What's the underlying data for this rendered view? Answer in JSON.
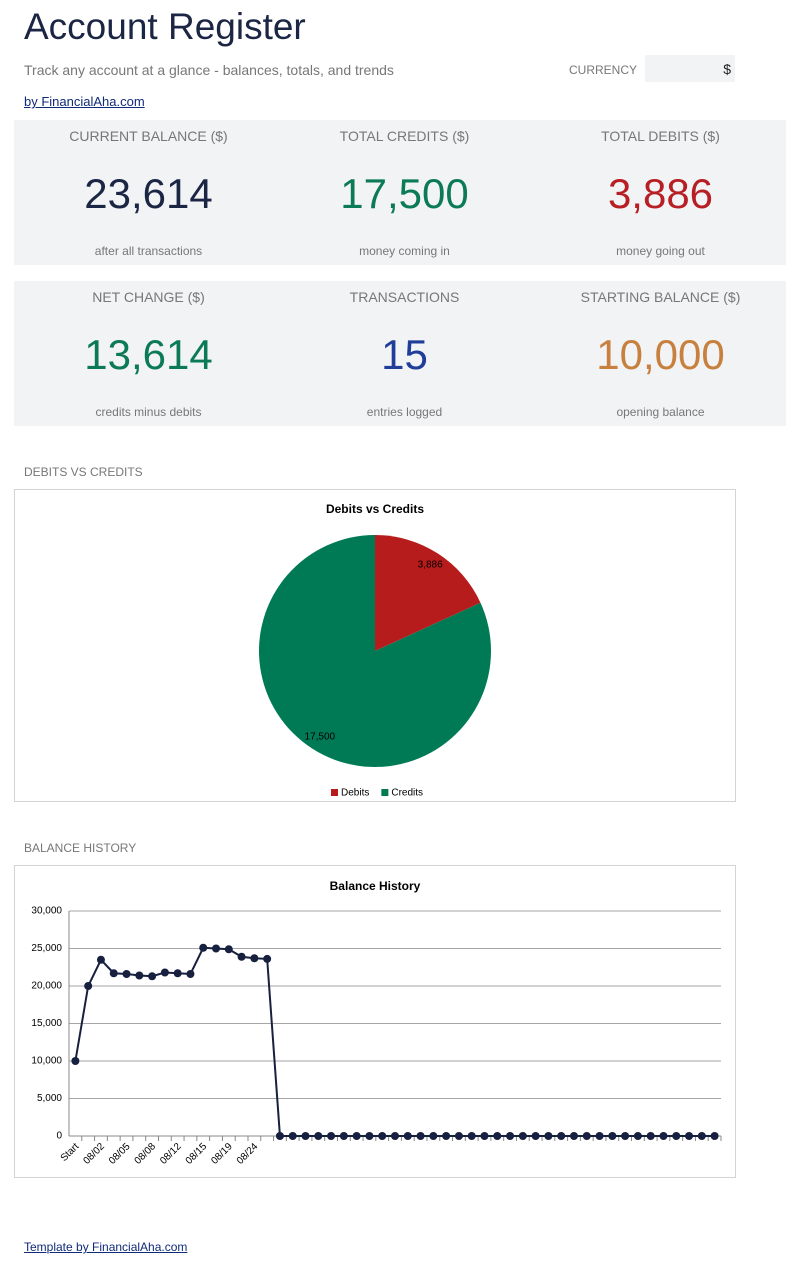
{
  "header": {
    "title": "Account Register",
    "subtitle": "Track any account at a glance - balances, totals, and trends",
    "currency_label": "CURRENCY",
    "currency_value": "$",
    "link": "by FinancialAha.com"
  },
  "kpis": [
    [
      {
        "label": "CURRENT BALANCE ($)",
        "value": "23,614",
        "note": "after all transactions",
        "color": "#1b2544"
      },
      {
        "label": "TOTAL CREDITS ($)",
        "value": "17,500",
        "note": "money coming in",
        "color": "#0b7a55"
      },
      {
        "label": "TOTAL DEBITS ($)",
        "value": "3,886",
        "note": "money going out",
        "color": "#b71f24"
      }
    ],
    [
      {
        "label": "NET CHANGE ($)",
        "value": "13,614",
        "note": "credits minus debits",
        "color": "#0b7a55"
      },
      {
        "label": "TRANSACTIONS",
        "value": "15",
        "note": "entries logged",
        "color": "#1f3d99"
      },
      {
        "label": "STARTING BALANCE ($)",
        "value": "10,000",
        "note": "opening balance",
        "color": "#c8803f"
      }
    ]
  ],
  "sections": [
    "DEBITS VS CREDITS",
    "BALANCE HISTORY"
  ],
  "chart_data": [
    {
      "type": "pie",
      "title": "Debits vs Credits",
      "categories": [
        "Debits",
        "Credits"
      ],
      "values": [
        3886,
        17500
      ],
      "value_labels": [
        "3,886",
        "17,500"
      ],
      "colors": [
        "#b71c1c",
        "#007a55"
      ],
      "legend": "bottom"
    },
    {
      "type": "line",
      "title": "Balance History",
      "categories": [
        "Start",
        null,
        "08/02",
        null,
        "08/05",
        null,
        "08/08",
        null,
        "08/12",
        null,
        "08/15",
        null,
        "08/19",
        null,
        "08/24",
        null,
        null,
        null,
        null,
        null,
        null,
        null,
        null,
        null,
        null,
        null,
        null,
        null,
        null,
        null,
        null,
        null,
        null,
        null,
        null,
        null,
        null,
        null,
        null,
        null,
        null,
        null,
        null,
        null,
        null,
        null,
        null,
        null,
        null,
        null,
        null
      ],
      "series": [
        {
          "name": "Balance",
          "color": "#17203f",
          "values": [
            10000,
            20000,
            23500,
            21700,
            21600,
            21400,
            21300,
            21800,
            21700,
            21600,
            25100,
            25000,
            24900,
            23900,
            23700,
            23614,
            0,
            0,
            0,
            0,
            0,
            0,
            0,
            0,
            0,
            0,
            0,
            0,
            0,
            0,
            0,
            0,
            0,
            0,
            0,
            0,
            0,
            0,
            0,
            0,
            0,
            0,
            0,
            0,
            0,
            0,
            0,
            0,
            0,
            0,
            0
          ]
        }
      ],
      "ylim": [
        0,
        30000
      ],
      "yticks": [
        0,
        {
          "value": 5000,
          "label": "5,000"
        },
        {
          "value": 10000,
          "label": "10,000"
        },
        {
          "value": 15000,
          "label": "15,000"
        },
        {
          "value": 20000,
          "label": "20,000"
        },
        {
          "value": 25000,
          "label": "25,000"
        },
        {
          "value": 30000,
          "label": "30,000"
        }
      ],
      "grid": true
    }
  ],
  "footer": "Template by FinancialAha.com"
}
